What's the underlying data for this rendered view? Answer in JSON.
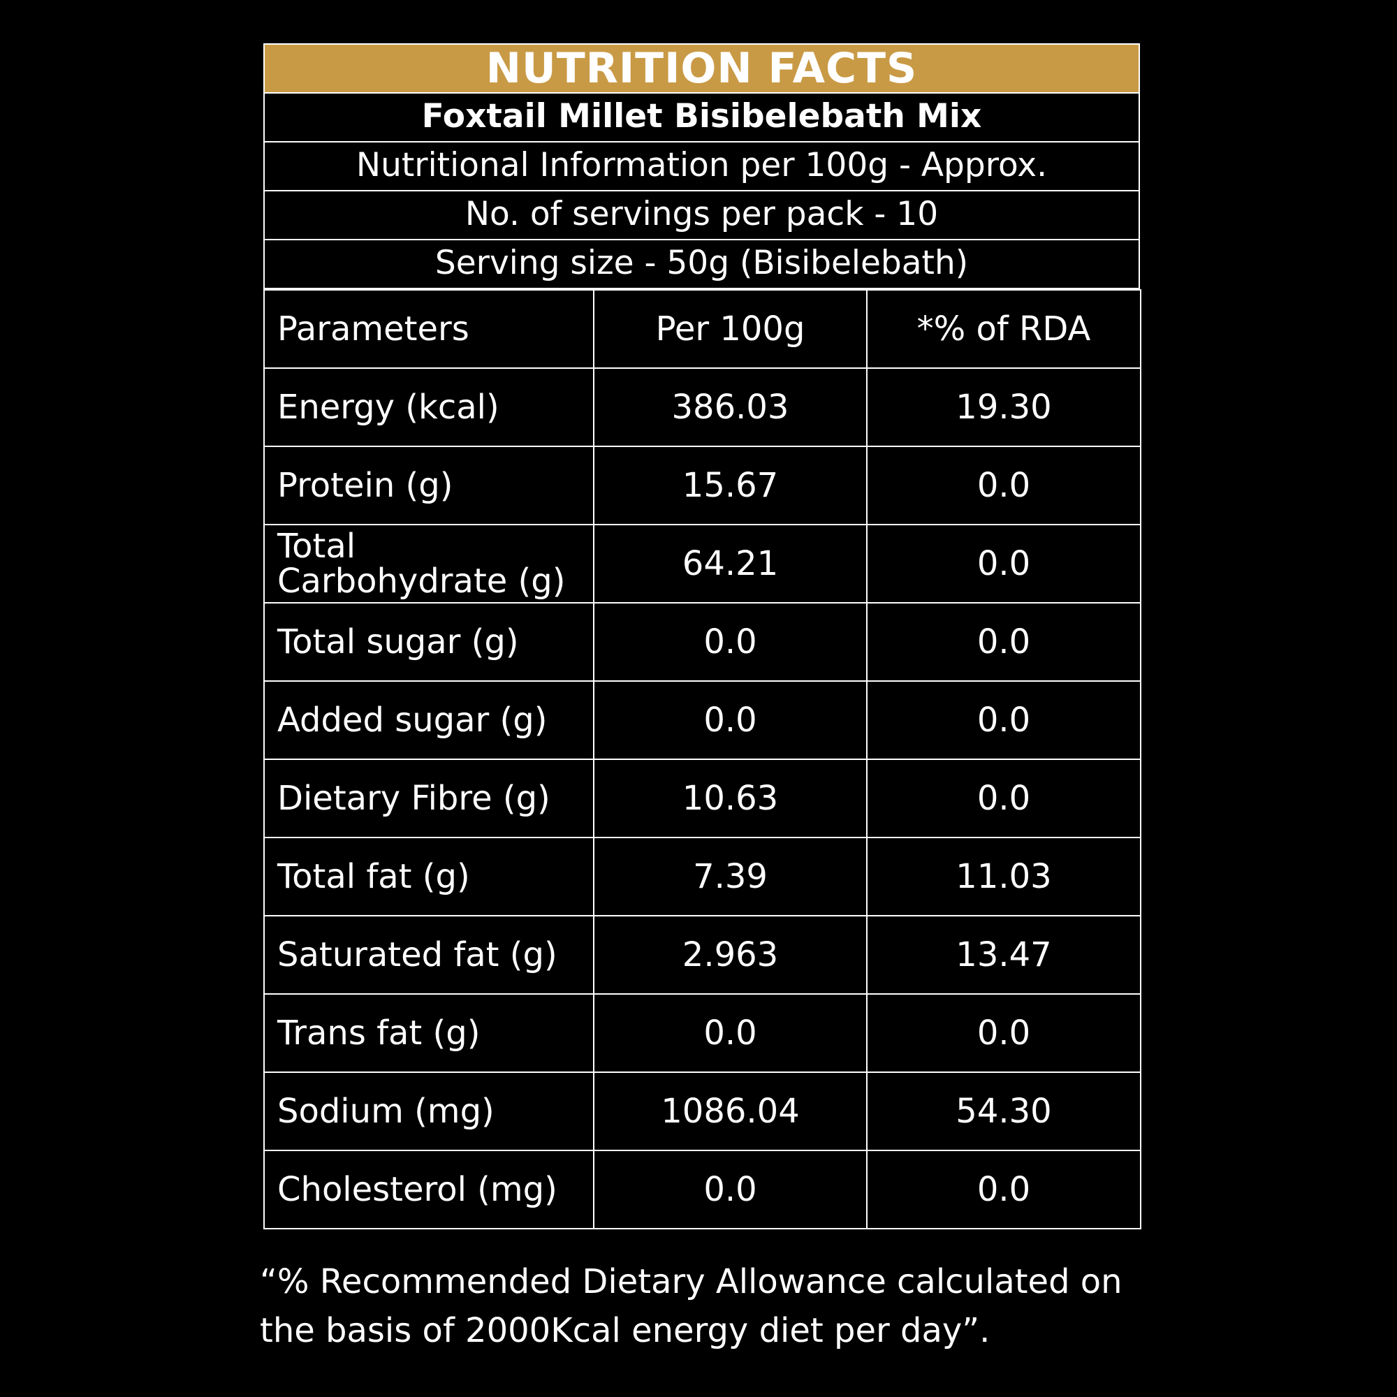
{
  "banner_title": "NUTRITION FACTS",
  "product_name": "Foxtail Millet Bisibelebath Mix",
  "info_lines": [
    "Nutritional Information per 100g - Approx.",
    "No. of servings per pack - 10",
    "Serving size  - 50g (Bisibelebath)"
  ],
  "table": {
    "headers": [
      "Parameters",
      "Per 100g",
      "*% of RDA"
    ],
    "rows": [
      {
        "parameter": "Energy (kcal)",
        "per_100g": "386.03",
        "rda": "19.30"
      },
      {
        "parameter": "Protein (g)",
        "per_100g": "15.67",
        "rda": "0.0"
      },
      {
        "parameter": "Total Carbohydrate (g)",
        "per_100g": "64.21",
        "rda": "0.0"
      },
      {
        "parameter": "Total sugar (g)",
        "per_100g": "0.0",
        "rda": "0.0"
      },
      {
        "parameter": "Added sugar (g)",
        "per_100g": "0.0",
        "rda": "0.0"
      },
      {
        "parameter": "Dietary Fibre (g)",
        "per_100g": "10.63",
        "rda": "0.0"
      },
      {
        "parameter": "Total fat (g)",
        "per_100g": "7.39",
        "rda": "11.03"
      },
      {
        "parameter": "Saturated fat (g)",
        "per_100g": "2.963",
        "rda": "13.47"
      },
      {
        "parameter": "Trans fat (g)",
        "per_100g": "0.0",
        "rda": "0.0"
      },
      {
        "parameter": "Sodium (mg)",
        "per_100g": "1086.04",
        "rda": "54.30"
      },
      {
        "parameter": "Cholesterol (mg)",
        "per_100g": "0.0",
        "rda": "0.0"
      }
    ]
  },
  "footnote": "“% Recommended Dietary Allowance calculated on the basis of 2000Kcal energy diet per day”.",
  "colors": {
    "background": "#000000",
    "banner": "#c99a45",
    "text": "#ffffff",
    "lines": "#ffffff"
  }
}
